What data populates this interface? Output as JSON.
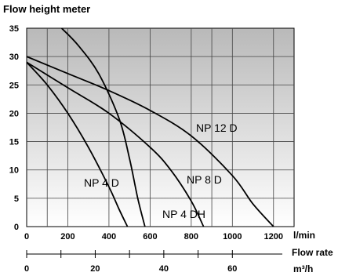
{
  "chart_data": {
    "type": "line",
    "title": "Flow height meter",
    "ylabel": "Flow height meter",
    "xlabel": "Flow rate",
    "x_unit": "l/min",
    "x2_unit": "m³/h",
    "xlim": [
      0,
      1300
    ],
    "ylim": [
      0,
      35
    ],
    "x_ticks": [
      0,
      200,
      400,
      600,
      800,
      1000,
      1200
    ],
    "x2_ticks": [
      0,
      20,
      40,
      60
    ],
    "y_ticks": [
      0,
      5,
      10,
      15,
      20,
      25,
      30,
      35
    ],
    "grid": true,
    "background": "gradient-gray",
    "series": [
      {
        "name": "NP 4 D",
        "x": [
          0,
          100,
          200,
          300,
          400,
          450,
          490
        ],
        "y": [
          29,
          25,
          20,
          14,
          7,
          3,
          0
        ]
      },
      {
        "name": "NP 4 DH",
        "x": [
          170,
          250,
          350,
          450,
          500,
          540,
          575
        ],
        "y": [
          35,
          32,
          27,
          19,
          12,
          5,
          0
        ]
      },
      {
        "name": "NP 8 D",
        "x": [
          0,
          200,
          400,
          600,
          700,
          800,
          860
        ],
        "y": [
          29,
          24.5,
          20,
          14,
          10,
          4.5,
          0
        ]
      },
      {
        "name": "NP 12 D",
        "x": [
          0,
          200,
          400,
          600,
          800,
          1000,
          1100,
          1200
        ],
        "y": [
          30,
          27,
          24,
          20.5,
          16,
          9,
          4,
          0
        ]
      }
    ],
    "curve_labels": [
      {
        "text": "NP 12 D",
        "series": "NP 12 D"
      },
      {
        "text": "NP 8 D",
        "series": "NP 8 D"
      },
      {
        "text": "NP 4 D",
        "series": "NP 4 D"
      },
      {
        "text": "NP 4 DH",
        "series": "NP 4 DH"
      }
    ]
  }
}
